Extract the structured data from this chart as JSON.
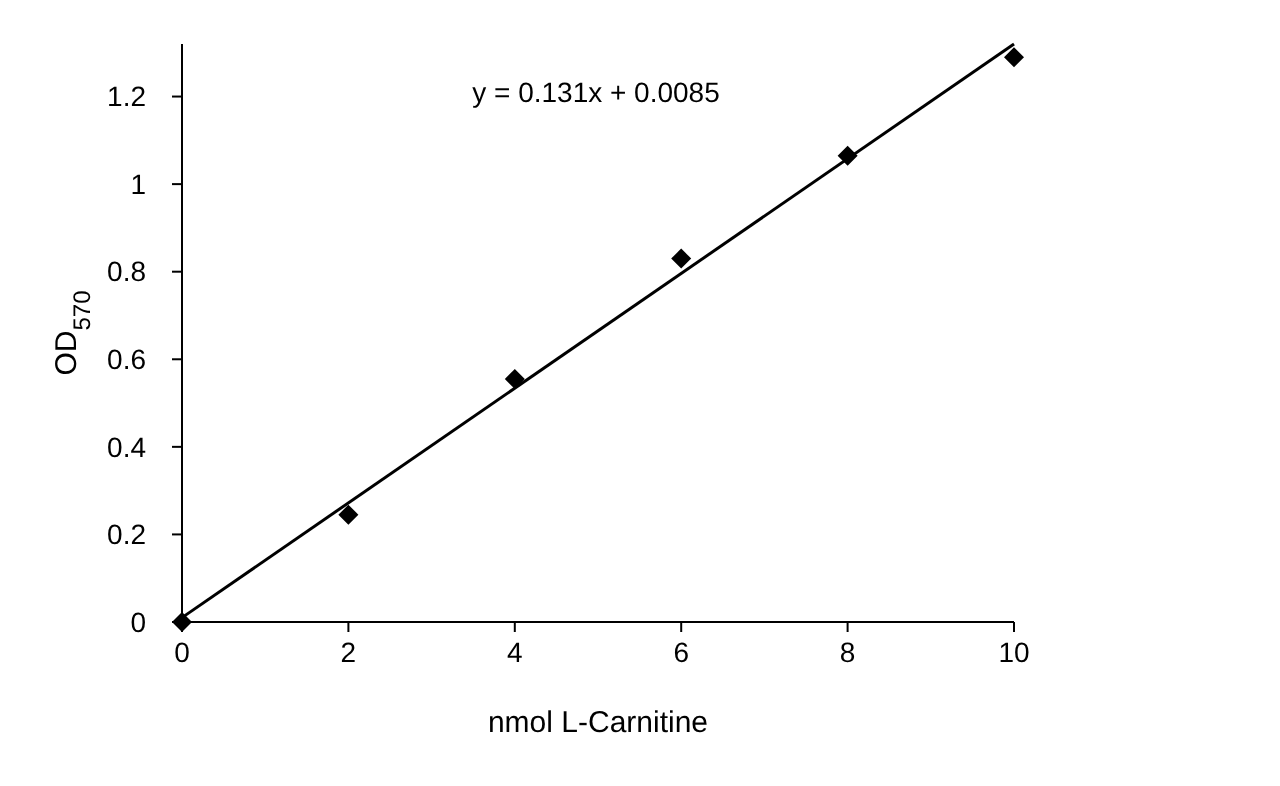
{
  "chart_data": {
    "type": "scatter",
    "xlabel": "nmol L-Carnitine",
    "ylabel": "OD$_{570}$",
    "annotations": [
      "y = 0.131x + 0.0085"
    ],
    "x": [
      0,
      2,
      4,
      6,
      8,
      10
    ],
    "series": [
      {
        "color": "#000000",
        "marker": "diamond",
        "values": [
          0,
          0.245,
          0.555,
          0.83,
          1.065,
          1.29
        ]
      },
      {
        "type": "line",
        "color": "#000000",
        "marker": "none",
        "x": [
          0,
          10
        ],
        "values": [
          0.01,
          1.32
        ]
      }
    ],
    "xlim": [
      0,
      10
    ],
    "xticks": [
      0,
      2,
      4,
      6,
      8,
      10
    ],
    "ylim": [
      0,
      1.32
    ],
    "yticks": [
      0,
      0.2,
      0.4,
      0.6,
      0.8,
      1,
      1.2
    ],
    "grid": false
  }
}
